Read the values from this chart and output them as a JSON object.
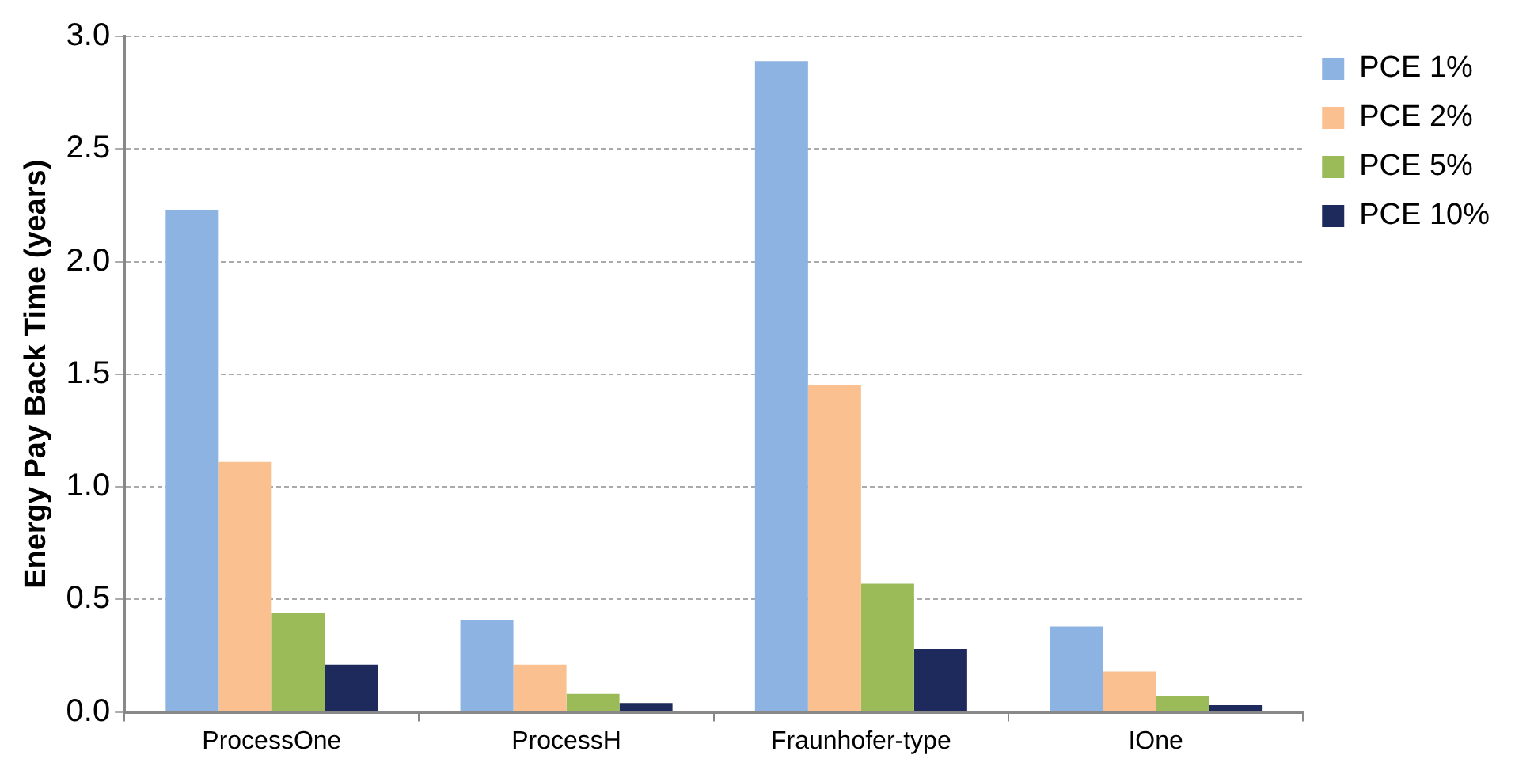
{
  "chart_data": {
    "type": "bar",
    "ylabel": "Energy Pay Back Time (years)",
    "categories": [
      "ProcessOne",
      "ProcessH",
      "Fraunhofer-type",
      "IOne"
    ],
    "series": [
      {
        "name": "PCE 1%",
        "color": "#8db3e2",
        "values": [
          2.23,
          0.41,
          2.89,
          0.38
        ]
      },
      {
        "name": "PCE 2%",
        "color": "#fac08f",
        "values": [
          1.11,
          0.21,
          1.45,
          0.18
        ]
      },
      {
        "name": "PCE 5%",
        "color": "#9bbb59",
        "values": [
          0.44,
          0.08,
          0.57,
          0.07
        ]
      },
      {
        "name": "PCE 10%",
        "color": "#1f2a5c",
        "values": [
          0.21,
          0.04,
          0.28,
          0.03
        ]
      }
    ],
    "ylim": [
      0,
      3
    ],
    "yticks": [
      {
        "value": 0,
        "label": "0.0"
      },
      0.5,
      {
        "value": 1,
        "label": "1.0"
      },
      1.5,
      {
        "value": 2,
        "label": "2.0"
      },
      2.5,
      {
        "value": 3,
        "label": "3.0"
      }
    ],
    "grid": "y",
    "legend": "top right"
  }
}
